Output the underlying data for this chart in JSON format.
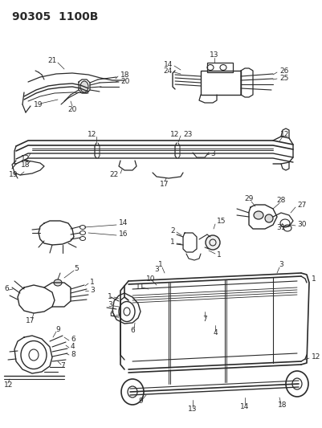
{
  "title": "90305  1100B",
  "bg_color": "#ffffff",
  "fig_width": 4.02,
  "fig_height": 5.33,
  "dpi": 100,
  "line_color": "#2a2a2a",
  "label_fontsize": 6.5,
  "title_fontsize": 10
}
